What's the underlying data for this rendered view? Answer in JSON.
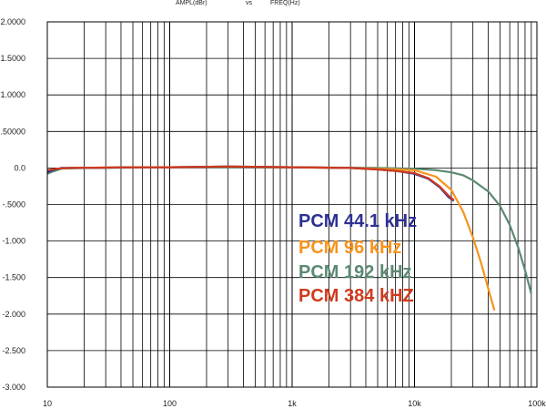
{
  "chart_data": {
    "type": "line",
    "title_left": "AMPL(dBr)",
    "title_mid": "vs",
    "title_right": "FREQ(Hz)",
    "x_scale": "log",
    "xlim": [
      10,
      100000
    ],
    "ylim": [
      -3.0,
      2.0
    ],
    "x_tick_labels": [
      {
        "v": 10,
        "label": "10"
      },
      {
        "v": 100,
        "label": "100"
      },
      {
        "v": 1000,
        "label": "1k"
      },
      {
        "v": 10000,
        "label": "10k"
      },
      {
        "v": 100000,
        "label": "100k"
      }
    ],
    "y_tick_labels": [
      {
        "v": 2.0,
        "label": "2.0000"
      },
      {
        "v": 1.5,
        "label": "1.5000"
      },
      {
        "v": 1.0,
        "label": "1.0000"
      },
      {
        "v": 0.5,
        "label": ".50000"
      },
      {
        "v": 0.0,
        "label": "0.0"
      },
      {
        "v": -0.5,
        "label": "-.5000"
      },
      {
        "v": -1.0,
        "label": "-1.000"
      },
      {
        "v": -1.5,
        "label": "-1.500"
      },
      {
        "v": -2.0,
        "label": "-2.000"
      },
      {
        "v": -2.5,
        "label": "-2.500"
      },
      {
        "v": -3.0,
        "label": "-3.000"
      }
    ],
    "grid": true,
    "legend_position": "right",
    "legend_prefix": "PCM",
    "series": [
      {
        "name": "44.1 kHz",
        "color": "#2e3192",
        "points": [
          [
            10,
            -0.06
          ],
          [
            11,
            -0.03
          ],
          [
            13,
            0.0
          ],
          [
            20,
            0.0
          ],
          [
            50,
            0.01
          ],
          [
            100,
            0.01
          ],
          [
            300,
            0.02
          ],
          [
            1000,
            0.01
          ],
          [
            3000,
            0.0
          ],
          [
            5000,
            -0.02
          ],
          [
            7000,
            -0.04
          ],
          [
            10000,
            -0.08
          ],
          [
            13000,
            -0.15
          ],
          [
            16000,
            -0.26
          ],
          [
            19000,
            -0.4
          ],
          [
            21000,
            -0.45
          ]
        ]
      },
      {
        "name": "96 kHz",
        "color": "#f7941d",
        "points": [
          [
            10,
            -0.04
          ],
          [
            12,
            -0.01
          ],
          [
            15,
            0.0
          ],
          [
            50,
            0.01
          ],
          [
            100,
            0.01
          ],
          [
            300,
            0.02
          ],
          [
            1000,
            0.01
          ],
          [
            3000,
            0.0
          ],
          [
            5000,
            -0.01
          ],
          [
            7000,
            -0.02
          ],
          [
            10000,
            -0.03
          ],
          [
            15000,
            -0.12
          ],
          [
            20000,
            -0.3
          ],
          [
            25000,
            -0.6
          ],
          [
            30000,
            -0.95
          ],
          [
            35000,
            -1.3
          ],
          [
            40000,
            -1.65
          ],
          [
            45000,
            -1.95
          ]
        ]
      },
      {
        "name": "192 kHz",
        "color": "#5b8a72",
        "points": [
          [
            10,
            -0.08
          ],
          [
            11,
            -0.05
          ],
          [
            13,
            -0.01
          ],
          [
            20,
            0.0
          ],
          [
            100,
            0.01
          ],
          [
            1000,
            0.01
          ],
          [
            5000,
            0.0
          ],
          [
            10000,
            -0.01
          ],
          [
            15000,
            -0.03
          ],
          [
            20000,
            -0.06
          ],
          [
            25000,
            -0.1
          ],
          [
            30000,
            -0.17
          ],
          [
            40000,
            -0.32
          ],
          [
            50000,
            -0.52
          ],
          [
            60000,
            -0.78
          ],
          [
            70000,
            -1.08
          ],
          [
            80000,
            -1.4
          ],
          [
            90000,
            -1.72
          ]
        ]
      },
      {
        "name": "384 kHZ",
        "color": "#d03a1e",
        "points": [
          [
            10,
            -0.03
          ],
          [
            12,
            -0.01
          ],
          [
            15,
            0.0
          ],
          [
            50,
            0.01
          ],
          [
            100,
            0.01
          ],
          [
            300,
            0.02
          ],
          [
            1000,
            0.01
          ],
          [
            3000,
            0.0
          ],
          [
            5000,
            -0.02
          ],
          [
            7000,
            -0.04
          ],
          [
            10000,
            -0.07
          ],
          [
            13000,
            -0.14
          ],
          [
            16000,
            -0.25
          ],
          [
            19000,
            -0.38
          ],
          [
            21000,
            -0.44
          ]
        ]
      }
    ]
  }
}
